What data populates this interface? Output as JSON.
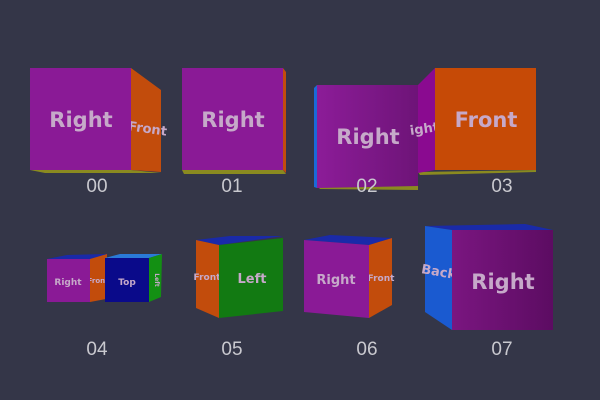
{
  "colors": {
    "background": "#343648",
    "purple": "#8a1a96",
    "orange": "#c84a0a",
    "green": "#127a12",
    "navy": "#0a0a8a",
    "blue": "#1a5ad0",
    "yellow": "#8a8a20"
  },
  "cubes": [
    {
      "caption": "00",
      "front": "Right",
      "side": "Front"
    },
    {
      "caption": "01",
      "front": "Right"
    },
    {
      "caption": "02",
      "front": "Right"
    },
    {
      "caption": "03",
      "front": "Front",
      "side": "ight"
    },
    {
      "caption": "04",
      "front": "Right",
      "side": "Front",
      "front2": "Top",
      "side2": "Left"
    },
    {
      "caption": "05",
      "front": "Left",
      "side": "Front"
    },
    {
      "caption": "06",
      "front": "Right",
      "side": "Front"
    },
    {
      "caption": "07",
      "front": "Right",
      "side": "Back"
    }
  ]
}
